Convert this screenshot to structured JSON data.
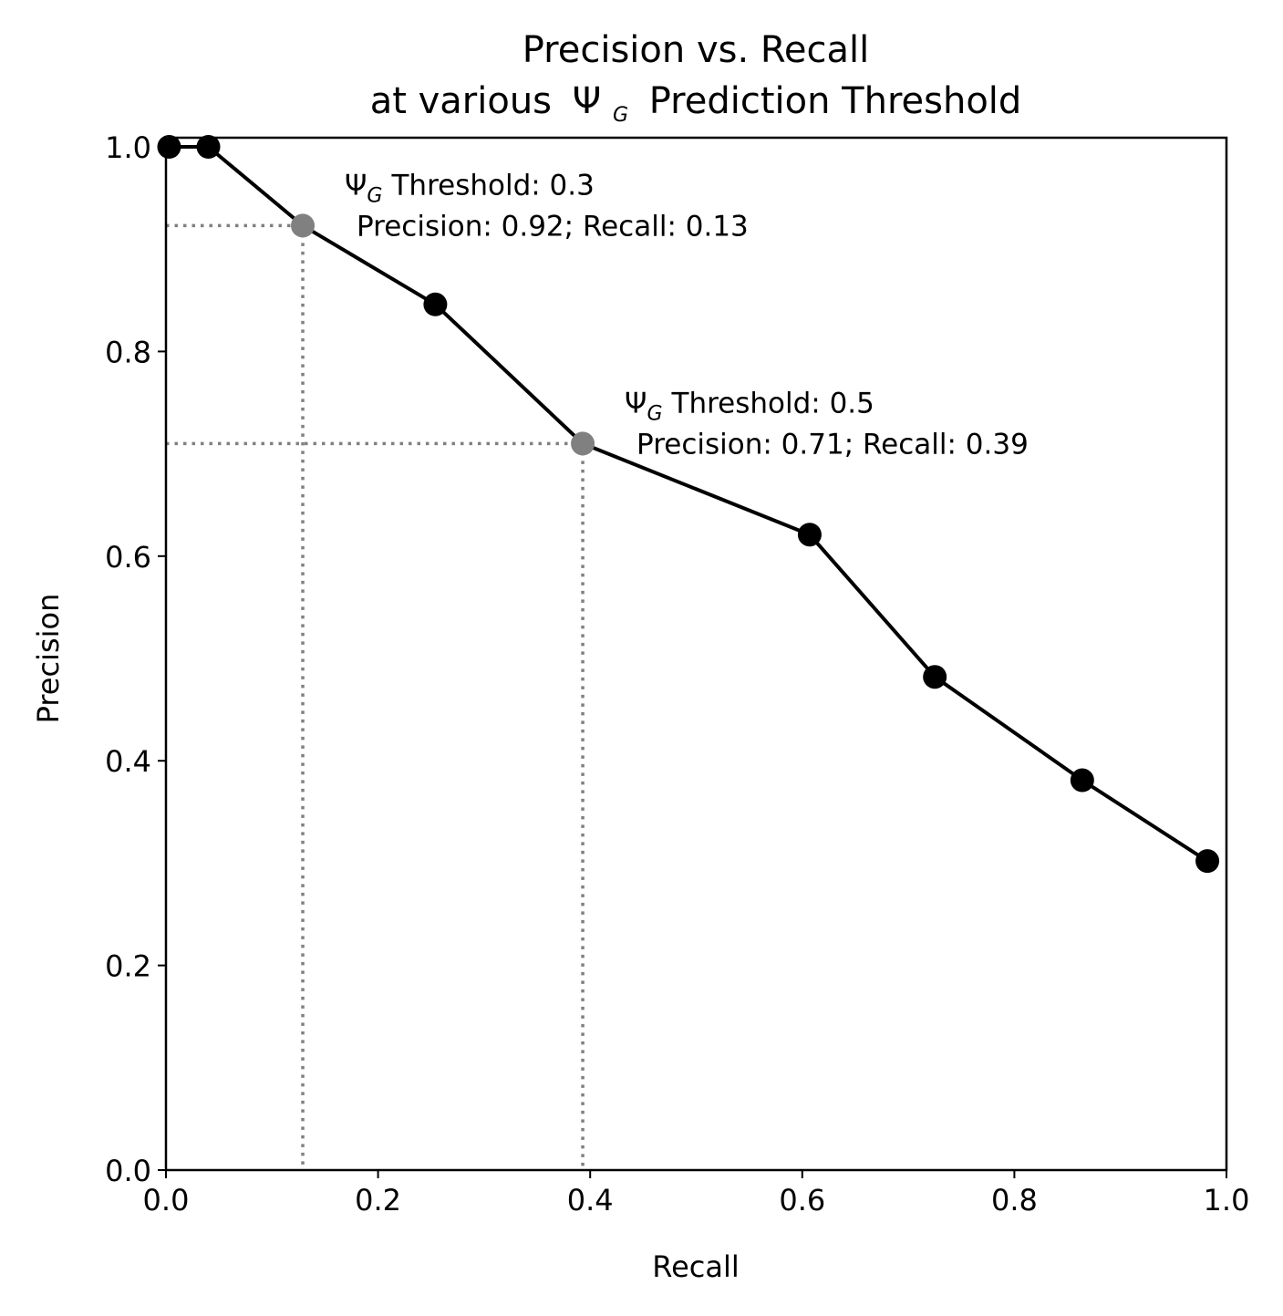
{
  "chart_data": {
    "type": "line",
    "title_line1": "Precision vs. Recall",
    "title_line2_prefix": "at various",
    "title_symbol": "Ψ",
    "title_symbol_sub": "G",
    "title_line2_suffix": "Prediction Threshold",
    "xlabel": "Recall",
    "ylabel": "Precision",
    "xlim": [
      0.0,
      1.0
    ],
    "ylim": [
      0.0,
      1.0
    ],
    "x_ticks": [
      0.0,
      0.2,
      0.4,
      0.6,
      0.8,
      1.0
    ],
    "x_tick_labels": [
      "0.0",
      "0.2",
      "0.4",
      "0.6",
      "0.8",
      "1.0"
    ],
    "y_ticks": [
      0.0,
      0.2,
      0.4,
      0.6,
      0.8,
      1.0
    ],
    "y_tick_labels": [
      "0.0",
      "0.2",
      "0.4",
      "0.6",
      "0.8",
      "1.0"
    ],
    "grid": false,
    "series": [
      {
        "x": [
          0.003,
          0.04,
          0.129,
          0.254,
          0.393,
          0.607,
          0.725,
          0.864,
          0.982
        ],
        "y": [
          1.0,
          1.0,
          0.923,
          0.846,
          0.71,
          0.621,
          0.482,
          0.381,
          0.302
        ],
        "color": "#000000"
      }
    ],
    "highlight_color": "#808080",
    "annotations": [
      {
        "x": 0.129,
        "y": 0.923,
        "symbol": "Ψ",
        "symbol_sub": "G",
        "line1_text": "Threshold: 0.3",
        "line2_text": "Precision: 0.92; Recall: 0.13"
      },
      {
        "x": 0.393,
        "y": 0.71,
        "symbol": "Ψ",
        "symbol_sub": "G",
        "line1_text": "Threshold: 0.5",
        "line2_text": "Precision: 0.71; Recall: 0.39"
      }
    ]
  }
}
